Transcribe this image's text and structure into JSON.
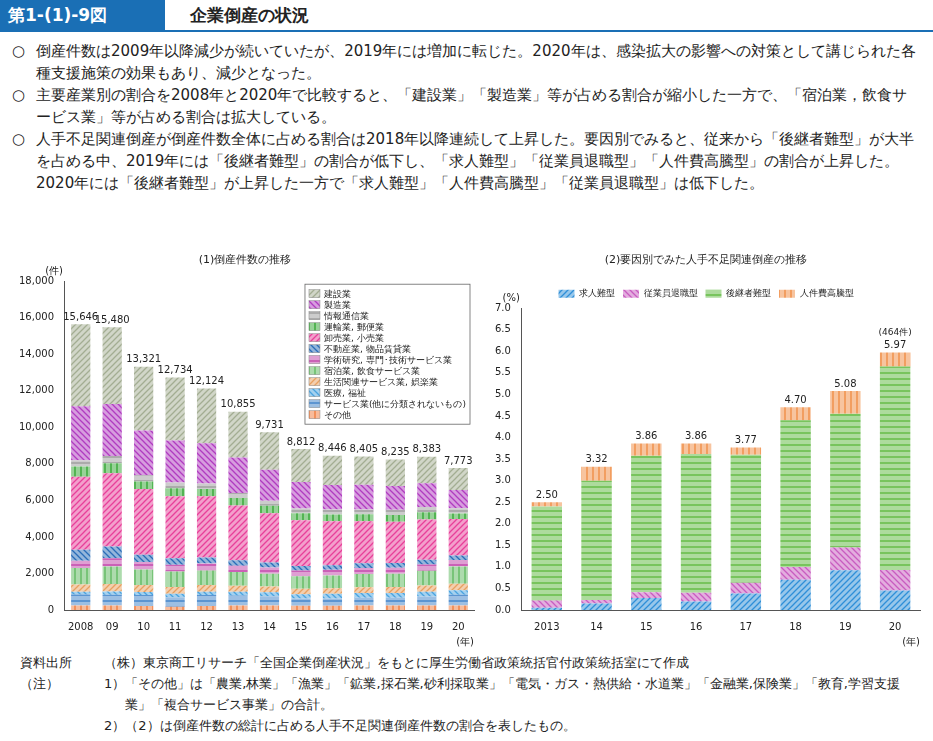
{
  "header": {
    "figure_no": "第1-(1)-9図",
    "title": "企業倒産の状況"
  },
  "bullet_mark": "○",
  "bullets": [
    "倒産件数は2009年以降減少が続いていたが、2019年には増加に転じた。2020年は、感染拡大の影響への対策として講じられた各種支援施策の効果もあり、減少となった。",
    "主要産業別の割合を2008年と2020年で比較すると、「建設業」「製造業」等が占める割合が縮小した一方で、「宿泊業，飲食サービス業」等が占める割合は拡大している。",
    "人手不足関連倒産が倒産件数全体に占める割合は2018年以降連続して上昇した。要因別でみると、従来から「後継者難型」が大半を占める中、2019年には「後継者難型」の割合が低下し、「求人難型」「従業員退職型」「人件費高騰型」の割合が上昇した。2020年には「後継者難型」が上昇した一方で「求人難型」「人件費高騰型」「従業員退職型」は低下した。"
  ],
  "chart_data": [
    {
      "type": "bar",
      "title": "(1)倒産件数の推移",
      "y_label": "(件)",
      "x_label": "(年)",
      "stacked": true,
      "grid": false,
      "legend": "top-right",
      "categories": [
        "2008",
        "09",
        "10",
        "11",
        "12",
        "13",
        "14",
        "15",
        "16",
        "17",
        "18",
        "19",
        "20"
      ],
      "series": [
        {
          "name": "建設業",
          "color": "#a3ad92",
          "values": [
            4496,
            4200,
            3500,
            3450,
            3000,
            2500,
            2050,
            1800,
            1600,
            1550,
            1450,
            1450,
            1200
          ]
        },
        {
          "name": "製造業",
          "color": "#b03cc0",
          "values": [
            2950,
            2850,
            2450,
            2300,
            2200,
            1950,
            1700,
            1450,
            1350,
            1350,
            1300,
            1300,
            1000
          ]
        },
        {
          "name": "情報通信業",
          "color": "#9a9a9a",
          "values": [
            350,
            400,
            330,
            320,
            300,
            280,
            280,
            270,
            270,
            270,
            280,
            280,
            290
          ]
        },
        {
          "name": "運輸業, 郵便業",
          "color": "#2fa52f",
          "values": [
            550,
            550,
            420,
            430,
            400,
            400,
            400,
            380,
            370,
            380,
            380,
            400,
            300
          ]
        },
        {
          "name": "卸売業, 小売業",
          "color": "#e8409a",
          "values": [
            4000,
            4000,
            3600,
            3400,
            3350,
            3000,
            2700,
            2500,
            2400,
            2300,
            2250,
            2200,
            2000
          ]
        },
        {
          "name": "不動産業, 物品賃貸業",
          "color": "#2a6db8",
          "values": [
            600,
            650,
            400,
            350,
            330,
            300,
            280,
            250,
            250,
            260,
            260,
            260,
            250
          ]
        },
        {
          "name": "学術研究, 専門･技術サービス業",
          "color": "#c040a8",
          "values": [
            400,
            450,
            400,
            380,
            380,
            350,
            330,
            320,
            320,
            330,
            330,
            350,
            350
          ]
        },
        {
          "name": "宿泊業, 飲食サービス業",
          "color": "#5cb85c",
          "values": [
            900,
            950,
            850,
            850,
            800,
            750,
            700,
            680,
            700,
            720,
            730,
            800,
            950
          ]
        },
        {
          "name": "生活関連サービス業, 娯楽業",
          "color": "#e8a060",
          "values": [
            400,
            420,
            380,
            370,
            360,
            330,
            320,
            300,
            300,
            310,
            320,
            340,
            350
          ]
        },
        {
          "name": "医療, 福祉",
          "color": "#4aa3df",
          "values": [
            150,
            170,
            170,
            180,
            180,
            200,
            220,
            230,
            260,
            270,
            260,
            270,
            250
          ]
        },
        {
          "name": "サービス業(他に分類されないもの)",
          "color": "#3a7fc8",
          "values": [
            600,
            600,
            600,
            530,
            600,
            550,
            500,
            400,
            400,
            420,
            430,
            480,
            580
          ]
        },
        {
          "name": "その他",
          "color": "#f07a3a",
          "values": [
            250,
            240,
            221,
            174,
            224,
            245,
            251,
            232,
            226,
            245,
            245,
            253,
            253
          ]
        }
      ],
      "totals": [
        15646,
        15480,
        13321,
        12734,
        12124,
        10855,
        9731,
        8812,
        8446,
        8405,
        8235,
        8383,
        7773
      ],
      "total_labels": [
        "15,646",
        "15,480",
        "13,321",
        "12,734",
        "12,124",
        "10,855",
        "9,731",
        "8,812",
        "8,446",
        "8,405",
        "8,235",
        "8,383",
        "7,773"
      ],
      "ylim": [
        0,
        18000
      ],
      "yticks": [
        0,
        {
          "value": 2000,
          "label": "2,000"
        },
        {
          "value": 4000,
          "label": "4,000"
        },
        {
          "value": 6000,
          "label": "6,000"
        },
        {
          "value": 8000,
          "label": "8,000"
        },
        {
          "value": 10000,
          "label": "10,000"
        },
        {
          "value": 12000,
          "label": "12,000"
        },
        {
          "value": 14000,
          "label": "14,000"
        },
        {
          "value": 16000,
          "label": "16,000"
        },
        {
          "value": 18000,
          "label": "18,000"
        }
      ]
    },
    {
      "type": "bar",
      "title": "(2)要因別でみた人手不足関連倒産の推移",
      "y_label": "(%)",
      "x_label": "(年)",
      "stacked": true,
      "grid": false,
      "legend": "top",
      "categories": [
        "2013",
        "14",
        "15",
        "16",
        "17",
        "18",
        "19",
        "20"
      ],
      "series": [
        {
          "name": "求人難型",
          "color": "#2f8fd8",
          "values": [
            0.05,
            0.15,
            0.28,
            0.2,
            0.38,
            0.7,
            0.92,
            0.45
          ]
        },
        {
          "name": "従業員退職型",
          "color": "#c85cc0",
          "values": [
            0.17,
            0.08,
            0.13,
            0.2,
            0.25,
            0.3,
            0.53,
            0.48
          ]
        },
        {
          "name": "後継者難型",
          "color": "#5cb83c",
          "values": [
            2.18,
            2.77,
            3.17,
            3.22,
            2.97,
            3.4,
            3.1,
            4.72
          ]
        },
        {
          "name": "人件費高騰型",
          "color": "#f08a40",
          "values": [
            0.1,
            0.32,
            0.28,
            0.24,
            0.17,
            0.3,
            0.53,
            0.32
          ]
        }
      ],
      "totals": [
        2.5,
        3.32,
        3.86,
        3.86,
        3.77,
        4.7,
        5.08,
        5.97
      ],
      "total_labels": [
        "2.50",
        "3.32",
        "3.86",
        "3.86",
        "3.77",
        "4.70",
        "5.08",
        "5.97"
      ],
      "annotations": [
        {
          "text": "(464件)",
          "category": "20"
        }
      ],
      "ylim": [
        0,
        7
      ],
      "yticks": [
        {
          "value": 0,
          "label": "0.0"
        },
        0.5,
        {
          "value": 1,
          "label": "1.0"
        },
        1.5,
        {
          "value": 2,
          "label": "2.0"
        },
        2.5,
        {
          "value": 3,
          "label": "3.0"
        },
        3.5,
        {
          "value": 4,
          "label": "4.0"
        },
        4.5,
        {
          "value": 5,
          "label": "5.0"
        },
        5.5,
        {
          "value": 6,
          "label": "6.0"
        },
        6.5,
        {
          "value": 7,
          "label": "7.0"
        }
      ]
    }
  ],
  "notes": {
    "source_label": "資料出所",
    "source": "（株）東京商工リサーチ「全国企業倒産状況」をもとに厚生労働省政策統括官付政策統括室にて作成",
    "note_label": "（注）",
    "items": [
      "1）「その他」は「農業,林業」「漁業」「鉱業,採石業,砂利採取業」「電気・ガス・熱供給・水道業」「金融業,保険業」「教育,学習支援業」「複合サービス事業」の合計。",
      "2）（2）は倒産件数の総計に占める人手不足関連倒産件数の割合を表したもの。"
    ]
  }
}
